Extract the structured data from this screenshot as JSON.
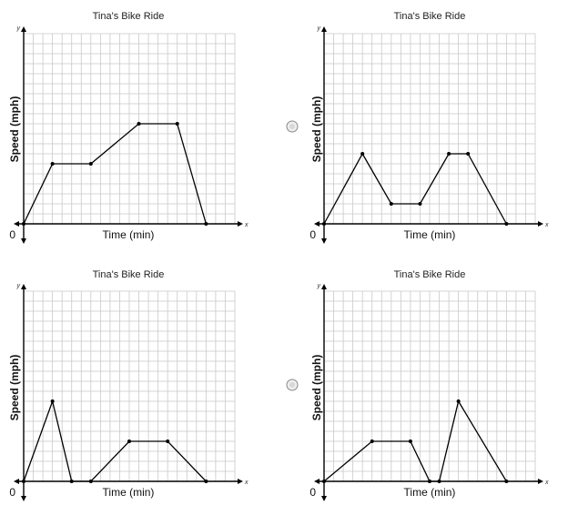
{
  "options": [
    {
      "title": "Tina's Bike Ride",
      "xlabel": "Time (min)",
      "ylabel": "Speed (mph)",
      "x_axis_char": "x",
      "y_axis_char": "y",
      "origin_label": "0",
      "has_radio": false
    },
    {
      "title": "Tina's Bike Ride",
      "xlabel": "Time (min)",
      "ylabel": "Speed (mph)",
      "x_axis_char": "x",
      "y_axis_char": "y",
      "origin_label": "0",
      "has_radio": true
    },
    {
      "title": "Tina's Bike Ride",
      "xlabel": "Time (min)",
      "ylabel": "Speed (mph)",
      "x_axis_char": "x",
      "y_axis_char": "y",
      "origin_label": "0",
      "has_radio": false
    },
    {
      "title": "Tina's Bike Ride",
      "xlabel": "Time (min)",
      "ylabel": "Speed (mph)",
      "x_axis_char": "x",
      "y_axis_char": "y",
      "origin_label": "0",
      "has_radio": true
    }
  ],
  "chart_data": [
    {
      "type": "line",
      "title": "Tina's Bike Ride",
      "xlabel": "Time (min)",
      "ylabel": "Speed (mph)",
      "x": [
        0,
        3,
        7,
        12,
        16,
        19
      ],
      "y": [
        0,
        6,
        6,
        10,
        10,
        0
      ],
      "xlim": [
        0,
        22
      ],
      "ylim": [
        0,
        19
      ],
      "grid": true
    },
    {
      "type": "line",
      "title": "Tina's Bike Ride",
      "xlabel": "Time (min)",
      "ylabel": "Speed (mph)",
      "x": [
        0,
        4,
        7,
        10,
        13,
        15,
        19
      ],
      "y": [
        0,
        7,
        2,
        2,
        7,
        7,
        0
      ],
      "xlim": [
        0,
        22
      ],
      "ylim": [
        0,
        19
      ],
      "grid": true
    },
    {
      "type": "line",
      "title": "Tina's Bike Ride",
      "xlabel": "Time (min)",
      "ylabel": "Speed (mph)",
      "x": [
        0,
        3,
        5,
        7,
        11,
        15,
        19
      ],
      "y": [
        0,
        8,
        0,
        0,
        4,
        4,
        0
      ],
      "xlim": [
        0,
        22
      ],
      "ylim": [
        0,
        19
      ],
      "grid": true
    },
    {
      "type": "line",
      "title": "Tina's Bike Ride",
      "xlabel": "Time (min)",
      "ylabel": "Speed (mph)",
      "x": [
        0,
        5,
        9,
        11,
        12,
        14,
        19
      ],
      "y": [
        0,
        4,
        4,
        0,
        0,
        8,
        0
      ],
      "xlim": [
        0,
        22
      ],
      "ylim": [
        0,
        19
      ],
      "grid": true
    }
  ]
}
